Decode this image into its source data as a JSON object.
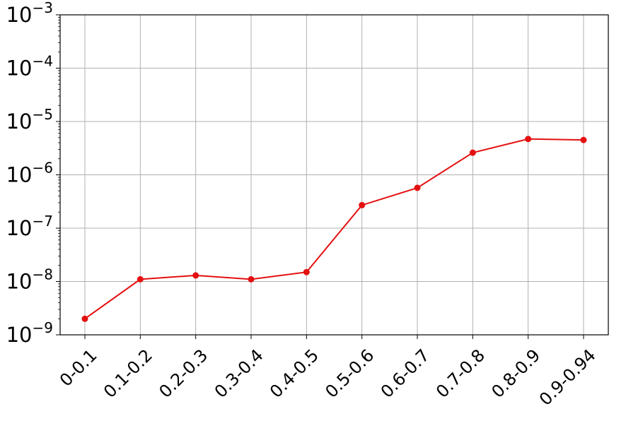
{
  "chart_data": {
    "type": "line",
    "title": "",
    "xlabel": "",
    "ylabel": "",
    "categories": [
      "0-0.1",
      "0.1-0.2",
      "0.2-0.3",
      "0.3-0.4",
      "0.4-0.5",
      "0.5-0.6",
      "0.6-0.7",
      "0.7-0.8",
      "0.8-0.9",
      "0.9-0.94"
    ],
    "y_scale": "log",
    "ylim": [
      1e-09,
      0.001
    ],
    "y_ticks": [
      {
        "base": "10",
        "exp": "−9"
      },
      {
        "base": "10",
        "exp": "−8"
      },
      {
        "base": "10",
        "exp": "−7"
      },
      {
        "base": "10",
        "exp": "−6"
      },
      {
        "base": "10",
        "exp": "−5"
      },
      {
        "base": "10",
        "exp": "−4"
      },
      {
        "base": "10",
        "exp": "−3"
      }
    ],
    "grid": true,
    "series": [
      {
        "values": [
          2e-09,
          1.1e-08,
          1.3e-08,
          1.1e-08,
          1.5e-08,
          2.7e-07,
          5.7e-07,
          2.6e-06,
          4.7e-06,
          4.5e-06
        ],
        "color": "#e41010",
        "marker": "circle"
      }
    ]
  }
}
